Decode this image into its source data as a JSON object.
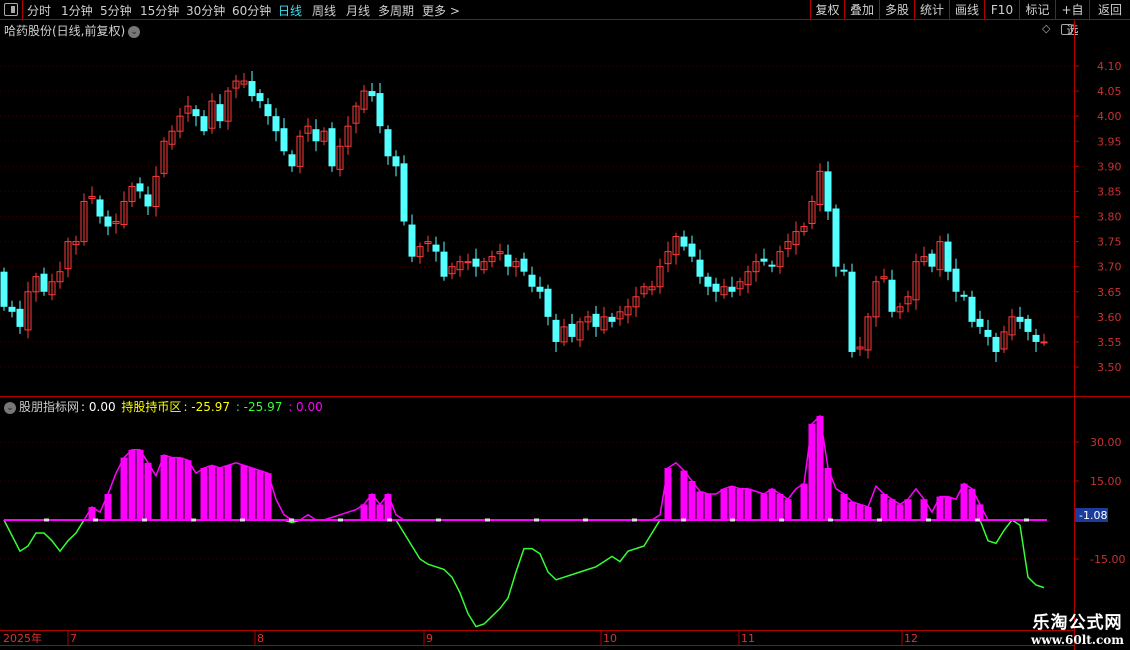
{
  "toolbar": {
    "periods": [
      "分时",
      "1分钟",
      "5分钟",
      "15分钟",
      "30分钟",
      "60分钟",
      "日线",
      "周线",
      "月线",
      "多周期",
      "更多 >"
    ],
    "active_period": "日线",
    "right_buttons": [
      "复权",
      "叠加",
      "多股",
      "统计",
      "画线",
      "F10",
      "标记",
      "+自选",
      "返回"
    ]
  },
  "stock_title": "哈药股份(日线,前复权)",
  "colors": {
    "up": "#ff3a3a",
    "down": "#54ffff",
    "positive": "#ff00ff",
    "negative": "#33ff33",
    "grid": "#3a0000",
    "axis": "#b00000"
  },
  "price_axis": {
    "ticks": [
      "4.10",
      "4.05",
      "4.00",
      "3.95",
      "3.90",
      "3.85",
      "3.80",
      "3.75",
      "3.70",
      "3.65",
      "3.60",
      "3.55",
      "3.50"
    ]
  },
  "indicator": {
    "name": "股朋指标网",
    "name_value": ": 0.00",
    "label": "持股持币区",
    "label_value": ": -25.97",
    "green_value": ": -25.97",
    "magenta_value": ": 0.00",
    "ticks": [
      "30.00",
      "15.00",
      "-15.00"
    ],
    "current_marker": "-1.08"
  },
  "date_axis": {
    "year": "2025年",
    "months": [
      "7",
      "8",
      "9",
      "10",
      "11",
      "12"
    ]
  },
  "watermark": {
    "line1": "乐淘公式网",
    "line2": "www.60lt.com"
  },
  "chart_data": {
    "type": "candlestick",
    "price_range": [
      3.48,
      4.16
    ],
    "close": [
      3.62,
      3.61,
      3.58,
      3.65,
      3.68,
      3.65,
      3.67,
      3.69,
      3.75,
      3.75,
      3.83,
      3.84,
      3.8,
      3.78,
      3.79,
      3.83,
      3.86,
      3.85,
      3.82,
      3.88,
      3.95,
      3.97,
      4.0,
      4.02,
      4.0,
      3.97,
      4.03,
      3.99,
      4.05,
      4.07,
      4.07,
      4.04,
      4.03,
      4.0,
      3.97,
      3.93,
      3.9,
      3.96,
      3.98,
      3.95,
      3.97,
      3.9,
      3.94,
      3.98,
      4.02,
      4.05,
      4.04,
      3.98,
      3.92,
      3.9,
      3.79,
      3.72,
      3.74,
      3.75,
      3.73,
      3.68,
      3.7,
      3.71,
      3.71,
      3.7,
      3.71,
      3.72,
      3.73,
      3.7,
      3.71,
      3.69,
      3.66,
      3.65,
      3.6,
      3.55,
      3.58,
      3.56,
      3.59,
      3.6,
      3.58,
      3.6,
      3.59,
      3.61,
      3.62,
      3.64,
      3.66,
      3.66,
      3.7,
      3.73,
      3.76,
      3.74,
      3.72,
      3.68,
      3.66,
      3.65,
      3.66,
      3.65,
      3.67,
      3.69,
      3.71,
      3.71,
      3.7,
      3.73,
      3.75,
      3.77,
      3.78,
      3.83,
      3.89,
      3.81,
      3.7,
      3.69,
      3.53,
      3.54,
      3.6,
      3.67,
      3.68,
      3.61,
      3.62,
      3.64,
      3.71,
      3.72,
      3.7,
      3.75,
      3.69,
      3.65,
      3.64,
      3.59,
      3.58,
      3.56,
      3.53,
      3.57,
      3.6,
      3.59,
      3.57,
      3.55,
      3.55
    ],
    "indicator_range": [
      -42,
      45
    ],
    "indicator_values": [
      0,
      -6,
      -12,
      -10,
      -5,
      -5,
      -8,
      -12,
      -8,
      -5,
      0,
      5,
      3,
      10,
      18,
      24,
      27,
      27,
      22,
      17,
      25,
      24,
      24,
      23,
      18,
      20,
      21,
      20,
      21,
      22,
      21,
      20,
      19,
      18,
      8,
      2,
      -1,
      0,
      2,
      0,
      0,
      1,
      2,
      3,
      4,
      6,
      10,
      6,
      10,
      2,
      -5,
      -10,
      -15,
      -17,
      -18,
      -19,
      -22,
      -28,
      -36,
      -41,
      -40,
      -37,
      -34,
      -30,
      -20,
      -11,
      -11,
      -13,
      -20,
      -23,
      -22,
      -21,
      -20,
      -19,
      -18,
      -16,
      -14,
      -16,
      -12,
      -11,
      -10,
      -5,
      2,
      20,
      22,
      19,
      15,
      11,
      10,
      10,
      12,
      13,
      12,
      12,
      11,
      10,
      12,
      10,
      8,
      12,
      14,
      37,
      40,
      20,
      12,
      10,
      7,
      6,
      5,
      13,
      10,
      8,
      6,
      8,
      12,
      8,
      3,
      9,
      9,
      8,
      14,
      12,
      6,
      -8,
      -9,
      -4,
      0,
      -2,
      -22,
      -25,
      -26
    ]
  }
}
